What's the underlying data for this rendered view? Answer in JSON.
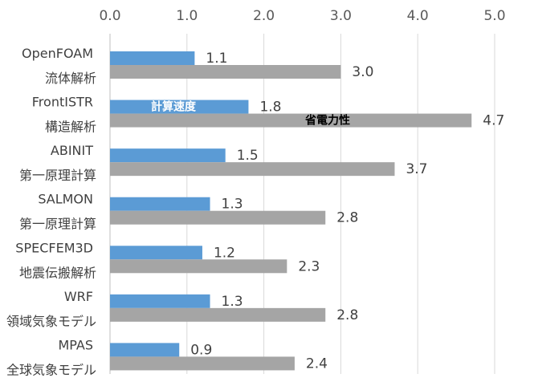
{
  "chart_data": {
    "type": "bar",
    "orientation": "horizontal",
    "categories": [
      [
        "OpenFOAM",
        "流体解析"
      ],
      [
        "FrontISTR",
        "構造解析"
      ],
      [
        "ABINIT",
        "第一原理計算"
      ],
      [
        "SALMON",
        "第一原理計算"
      ],
      [
        "SPECFEM3D",
        "地震伝搬解析"
      ],
      [
        "WRF",
        "領域気象モデル"
      ],
      [
        "MPAS",
        "全球気象モデル"
      ]
    ],
    "series": [
      {
        "name": "計算速度",
        "color": "#5b9bd5",
        "values": [
          1.1,
          1.8,
          1.5,
          1.3,
          1.2,
          1.3,
          0.9
        ]
      },
      {
        "name": "省電力性",
        "color": "#a5a5a5",
        "values": [
          3.0,
          4.7,
          3.7,
          2.8,
          2.3,
          2.8,
          2.4
        ]
      }
    ],
    "value_labels": [
      [
        "1.1",
        "1.8",
        "1.5",
        "1.3",
        "1.2",
        "1.3",
        "0.9"
      ],
      [
        "3.0",
        "4.7",
        "3.7",
        "2.8",
        "2.3",
        "2.8",
        "2.4"
      ]
    ],
    "xlim": [
      0,
      5
    ],
    "xticks": [
      "0.0",
      "1.0",
      "2.0",
      "3.0",
      "4.0",
      "5.0"
    ],
    "axis_position": "top",
    "grid": true,
    "legend": "inline-on-bars",
    "legend_text_colors": [
      "#ffffff",
      "#000000"
    ]
  }
}
